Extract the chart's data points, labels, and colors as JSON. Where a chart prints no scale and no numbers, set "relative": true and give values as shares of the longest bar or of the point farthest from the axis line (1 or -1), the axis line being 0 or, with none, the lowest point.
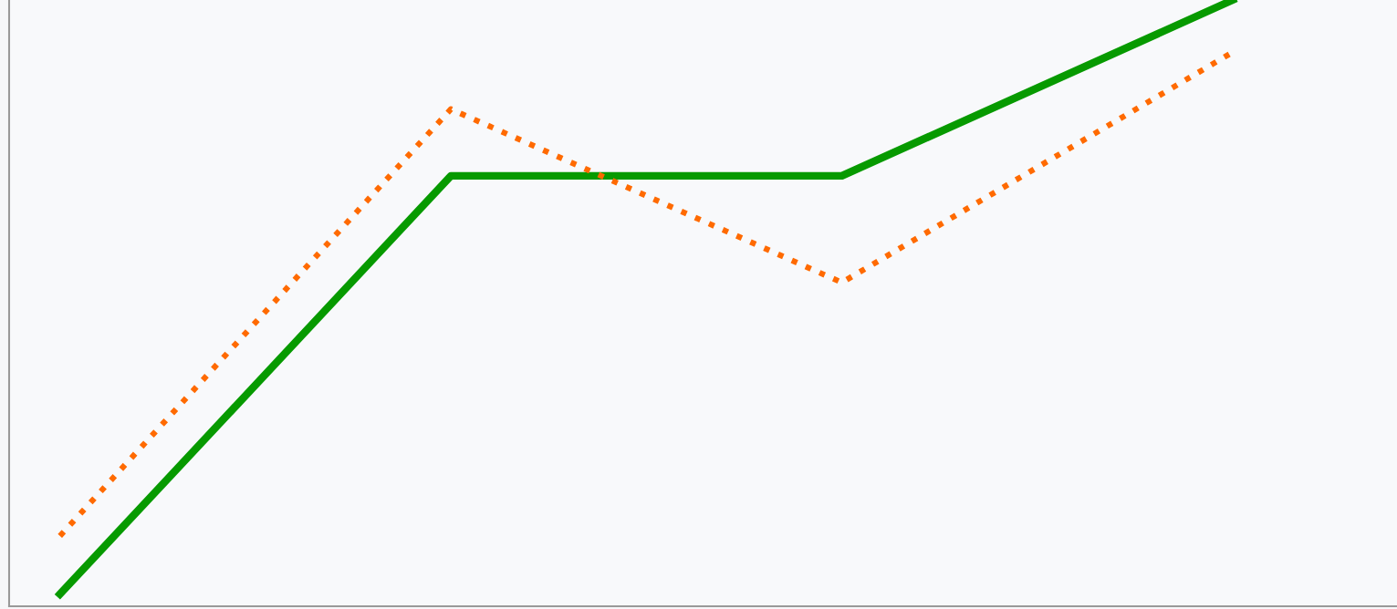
{
  "chart_data": {
    "type": "line",
    "relative": true,
    "marker": "none",
    "categories": [
      null,
      null,
      null,
      null
    ],
    "series": [
      {
        "color": "#079a00",
        "line_style": "solid",
        "values": [
          0.02,
          0.71,
          0.71,
          1.0
        ]
      },
      {
        "color": "#ff6a00",
        "line_style": "dotted",
        "values": [
          0.116,
          0.82,
          0.534,
          0.914
        ]
      }
    ]
  }
}
